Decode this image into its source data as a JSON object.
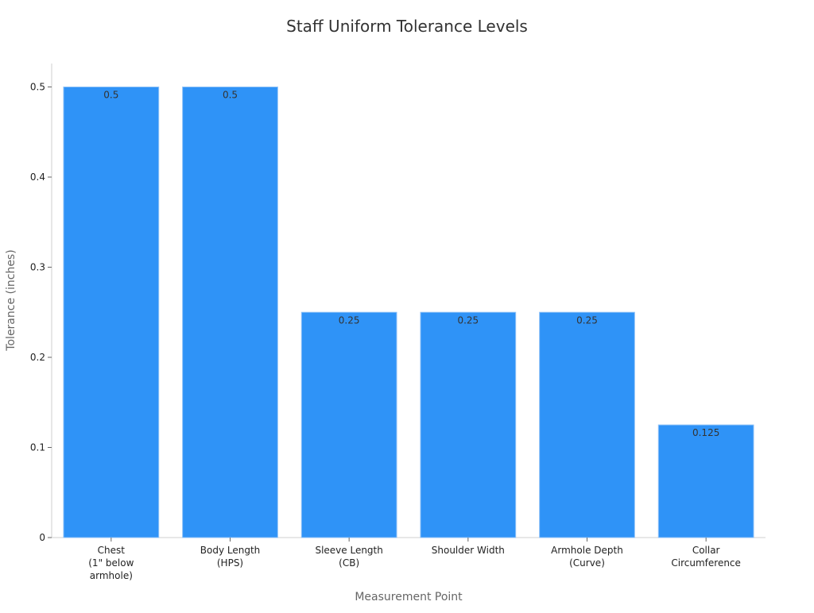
{
  "chart_data": {
    "type": "bar",
    "title": "Staff Uniform Tolerance Levels",
    "xlabel": "Measurement Point",
    "ylabel": "Tolerance (inches)",
    "categories": [
      "Chest\n(1\" below\narmhole)",
      "Body Length\n(HPS)",
      "Sleeve Length\n(CB)",
      "Shoulder Width",
      "Armhole Depth\n(Curve)",
      "Collar\nCircumference"
    ],
    "values": [
      0.5,
      0.5,
      0.25,
      0.25,
      0.25,
      0.125
    ],
    "data_labels": [
      "0.5",
      "0.5",
      "0.25",
      "0.25",
      "0.25",
      "0.125"
    ],
    "yticks": [
      0,
      0.1,
      0.2,
      0.3,
      0.4,
      0.5
    ],
    "ytick_labels": [
      "0",
      "0.1",
      "0.2",
      "0.3",
      "0.4",
      "0.5"
    ],
    "ylim": [
      0,
      0.526
    ],
    "bar_color": "#2f93f7",
    "grid": false,
    "legend": "none"
  }
}
